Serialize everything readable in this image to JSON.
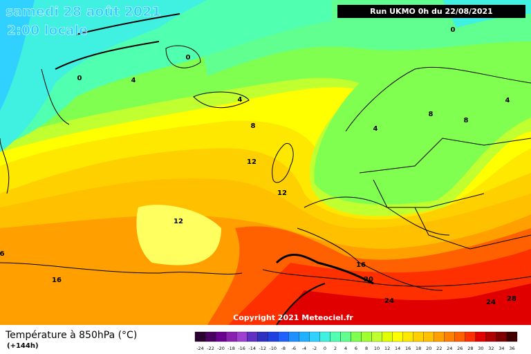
{
  "header": {
    "date": "samedi 28 août 2021",
    "time": "2:00 locale",
    "run": "Run UKMO 0h du 22/08/2021"
  },
  "map": {
    "contour_labels": [
      {
        "text": "0"
      },
      {
        "text": "0"
      },
      {
        "text": "0"
      },
      {
        "text": "4"
      },
      {
        "text": "4"
      },
      {
        "text": "4"
      },
      {
        "text": "4"
      },
      {
        "text": "8"
      },
      {
        "text": "8"
      },
      {
        "text": "8"
      },
      {
        "text": "12"
      },
      {
        "text": "12"
      },
      {
        "text": "12"
      },
      {
        "text": "6"
      },
      {
        "text": "16"
      },
      {
        "text": "16"
      },
      {
        "text": "20"
      },
      {
        "text": "24"
      },
      {
        "text": "24"
      },
      {
        "text": "28"
      }
    ],
    "copyright": "Copyright 2021 Meteociel.fr"
  },
  "footer": {
    "title": "Température à 850hPa (°C)",
    "subtitle": "(+144h)",
    "scale": [
      "-24",
      "-22",
      "-20",
      "-18",
      "-16",
      "-14",
      "-12",
      "-10",
      "-8",
      "-6",
      "-4",
      "-2",
      "0",
      "2",
      "4",
      "6",
      "8",
      "10",
      "12",
      "14",
      "16",
      "18",
      "20",
      "22",
      "24",
      "26",
      "28",
      "30",
      "32",
      "34",
      "36"
    ]
  }
}
